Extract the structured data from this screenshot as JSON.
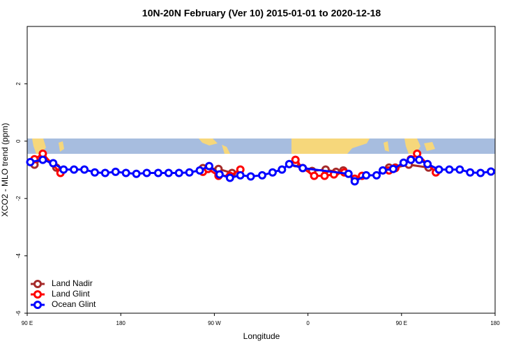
{
  "chart_data": {
    "type": "line",
    "title": "10N-20N February (Ver 10)   2015-01-01 to 2020-12-18",
    "x_label": "Longitude",
    "y_label": "XCO2 - MLO trend (ppm)",
    "xlim": [
      90,
      540
    ],
    "ylim": [
      -6,
      4
    ],
    "xticks": [
      {
        "value": 90,
        "label": "90 E"
      },
      {
        "value": 180,
        "label": "180"
      },
      {
        "value": 270,
        "label": "90 W"
      },
      {
        "value": 360,
        "label": "0"
      },
      {
        "value": 450,
        "label": "90 E"
      },
      {
        "value": 540,
        "label": "180"
      }
    ],
    "yticks": [
      -6,
      -4,
      -2,
      0,
      2
    ],
    "legend": "bottom-left",
    "series": [
      {
        "name": "Land Nadir",
        "color": "#a52a2a",
        "x": [
          97,
          105,
          118,
          190,
          259,
          274,
          287,
          320,
          348,
          364,
          377,
          387,
          394,
          415,
          438,
          444,
          457,
          476
        ],
        "values": [
          -0.82,
          -0.58,
          -0.92,
          null,
          -0.94,
          -0.97,
          -1.11,
          null,
          -0.77,
          -1.04,
          -0.99,
          -1.07,
          -1.02,
          null,
          -0.92,
          -0.92,
          -0.82,
          -0.92
        ]
      },
      {
        "name": "Land Glint",
        "color": "#ff0000",
        "x": [
          97,
          105,
          122,
          190,
          259,
          264,
          274,
          285,
          295,
          320,
          348,
          355,
          366,
          376,
          385,
          395,
          405,
          412,
          425,
          438,
          444,
          459,
          465,
          483
        ],
        "values": [
          -0.63,
          -0.44,
          -1.11,
          null,
          -1.07,
          -0.97,
          -1.21,
          -1.21,
          -0.99,
          null,
          -0.65,
          -0.94,
          -1.21,
          -1.21,
          -1.16,
          -1.09,
          -1.31,
          -1.21,
          null,
          -1.02,
          -0.94,
          -0.63,
          -0.44,
          -1.09
        ]
      },
      {
        "name": "Ocean Glint",
        "color": "#0000ff",
        "x": [
          93,
          105,
          115,
          125,
          135,
          145,
          155,
          165,
          175,
          185,
          195,
          205,
          216,
          226,
          236,
          246,
          256,
          265,
          275,
          285,
          295,
          305,
          316,
          326,
          335,
          342,
          355,
          399,
          405,
          416,
          426,
          432,
          442,
          452,
          459,
          467,
          475,
          486,
          496,
          506,
          516,
          526,
          536
        ],
        "values": [
          -0.73,
          -0.65,
          -0.77,
          -0.99,
          -0.99,
          -0.99,
          -1.09,
          -1.11,
          -1.07,
          -1.11,
          -1.14,
          -1.11,
          -1.11,
          -1.11,
          -1.11,
          -1.09,
          -1.02,
          -0.87,
          -1.16,
          -1.28,
          -1.19,
          -1.23,
          -1.19,
          -1.09,
          -0.99,
          -0.8,
          -0.94,
          -1.14,
          -1.4,
          -1.19,
          -1.19,
          -1.02,
          -0.97,
          -0.75,
          -0.65,
          -0.65,
          -0.8,
          -0.99,
          -0.99,
          -0.99,
          -1.09,
          -1.11,
          -1.06
        ]
      }
    ]
  }
}
